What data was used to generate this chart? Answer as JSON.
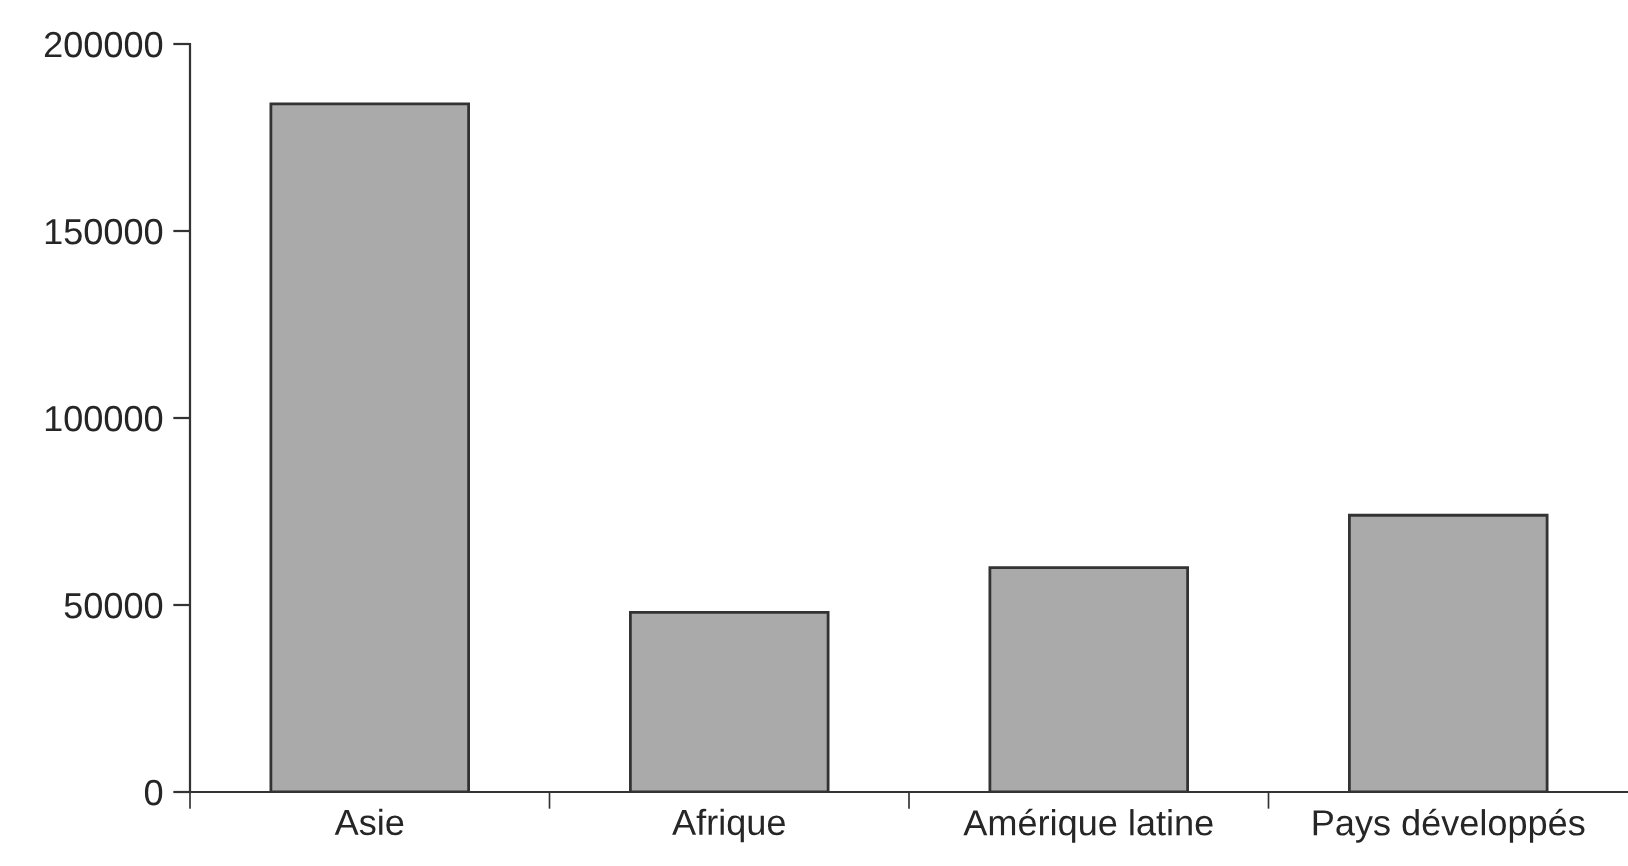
{
  "chart_data": {
    "type": "bar",
    "categories": [
      "Asie",
      "Afrique",
      "Amérique latine",
      "Pays développés"
    ],
    "values": [
      184000,
      48000,
      60000,
      74000
    ],
    "color": "#aaaaaa",
    "ylim": [
      0,
      200000
    ],
    "yticks": [
      0,
      50000,
      100000,
      150000,
      200000
    ],
    "grid": false,
    "legend": false
  }
}
